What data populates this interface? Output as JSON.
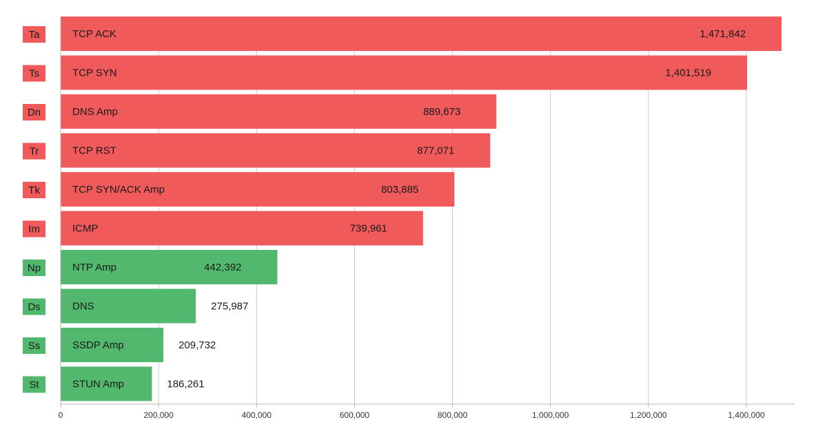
{
  "chart_data": {
    "type": "bar",
    "orientation": "horizontal",
    "title": "",
    "xlabel": "",
    "ylabel": "",
    "xlim": [
      0,
      1500000
    ],
    "x_ticks": [
      0,
      200000,
      400000,
      600000,
      800000,
      1000000,
      1200000,
      1400000
    ],
    "x_tick_labels": [
      "0",
      "200,000",
      "400,000",
      "600,000",
      "800,000",
      "1,000,000",
      "1,200,000",
      "1,400,000"
    ],
    "grid": "vertical",
    "colors": {
      "red": "#f05a5b",
      "green": "#52b86d"
    },
    "bars": [
      {
        "abbr": "Ta",
        "label": "TCP ACK",
        "value": 1471842,
        "value_label": "1,471,842",
        "color": "red"
      },
      {
        "abbr": "Ts",
        "label": "TCP SYN",
        "value": 1401519,
        "value_label": "1,401,519",
        "color": "red"
      },
      {
        "abbr": "Dn",
        "label": "DNS Amp",
        "value": 889673,
        "value_label": "889,673",
        "color": "red"
      },
      {
        "abbr": "Tr",
        "label": "TCP RST",
        "value": 877071,
        "value_label": "877,071",
        "color": "red"
      },
      {
        "abbr": "Tk",
        "label": "TCP SYN/ACK Amp",
        "value": 803885,
        "value_label": "803,885",
        "color": "red"
      },
      {
        "abbr": "Im",
        "label": "ICMP",
        "value": 739961,
        "value_label": "739,961",
        "color": "red"
      },
      {
        "abbr": "Np",
        "label": "NTP Amp",
        "value": 442392,
        "value_label": "442,392",
        "color": "green"
      },
      {
        "abbr": "Ds",
        "label": "DNS",
        "value": 275987,
        "value_label": "275,987",
        "color": "green"
      },
      {
        "abbr": "Ss",
        "label": "SSDP Amp",
        "value": 209732,
        "value_label": "209,732",
        "color": "green"
      },
      {
        "abbr": "St",
        "label": "STUN Amp",
        "value": 186261,
        "value_label": "186,261",
        "color": "green"
      }
    ]
  }
}
